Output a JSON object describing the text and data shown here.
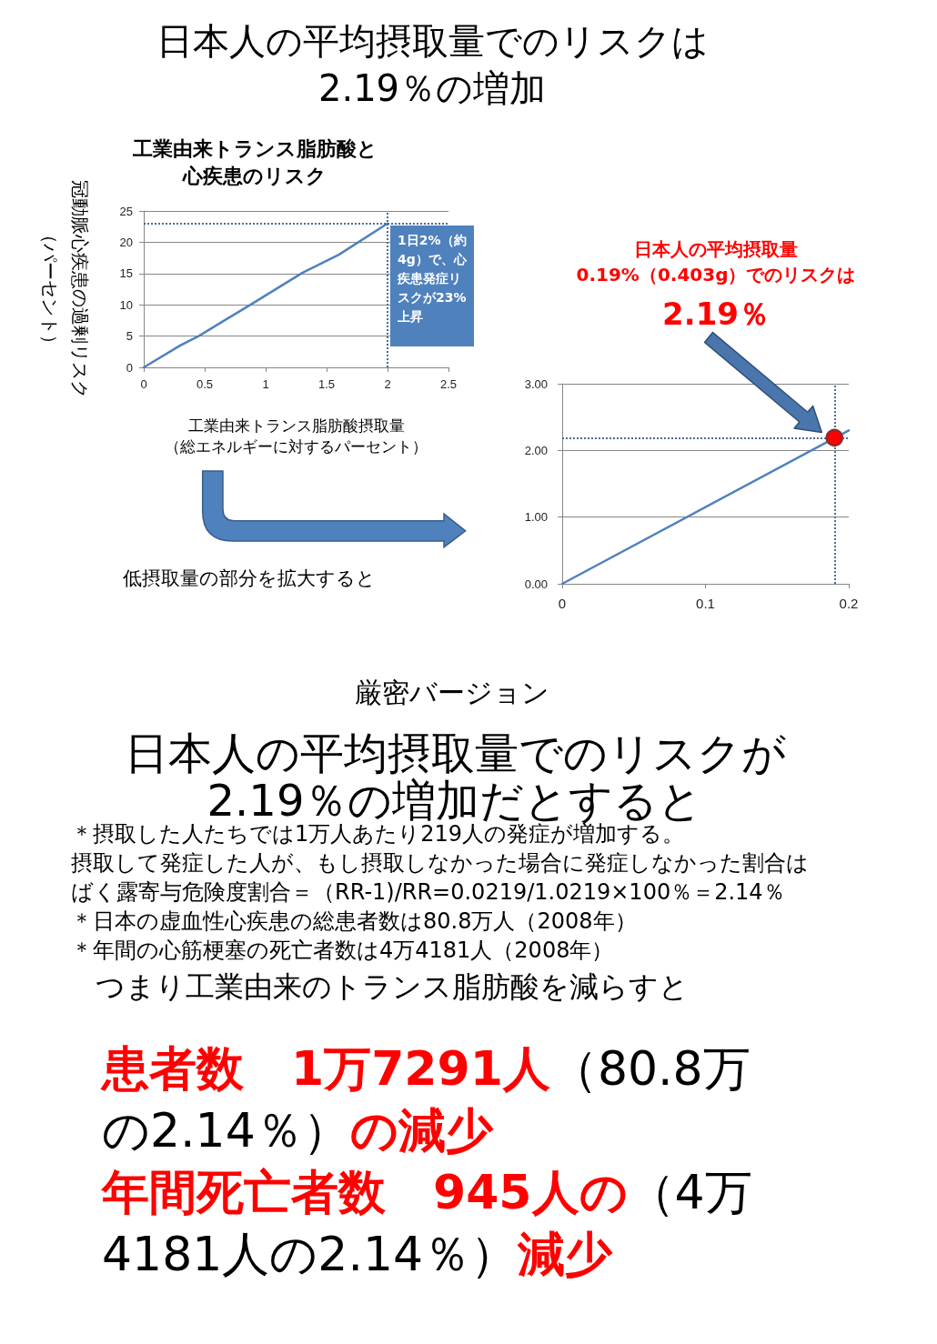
{
  "chart_data": [
    {
      "type": "other",
      "title": "日本人の平均摂取量でのリスクは\n2.19％の増加"
    },
    {
      "type": "line",
      "title": "工業由来トランス脂肪酸と心疾患のリスク",
      "xlabel": "工業由来トランス脂肪酸摂取量（総エネルギーに対するパーセント）",
      "ylabel": "冠動脈心疾患の過剰リスク（パーセント）",
      "x": [
        0,
        0.3,
        0.45,
        0.9,
        1.3,
        1.6,
        2
      ],
      "values": [
        0,
        3.5,
        5,
        10.3,
        15.1,
        18,
        23
      ],
      "color": "#4f81bd",
      "marker": "none",
      "xlim": [
        0,
        2.5
      ],
      "xticks": [
        0,
        0.5,
        1,
        1.5,
        2,
        2.5
      ],
      "ylim": [
        0,
        25
      ],
      "yticks": [
        0,
        5,
        10,
        15,
        20,
        25
      ],
      "grid": "y",
      "ref_lines": [
        {
          "axis": "y",
          "value": 23,
          "color": "#4a6d9a",
          "line_style": "dotted"
        },
        {
          "axis": "x",
          "value": 2,
          "color": "#4a6d9a",
          "line_style": "dotted"
        }
      ],
      "annotations": [
        {
          "text": "1日2%（約4g）で、心疾患発症リスクが23%上昇",
          "x": 2,
          "y": 23
        },
        "低摂取量の部分を拡大すると"
      ]
    },
    {
      "type": "line",
      "series": [
        {
          "type": "line",
          "x": [
            0,
            0.2
          ],
          "values": [
            0,
            2.3
          ],
          "color": "#4f81bd",
          "marker": "none"
        },
        {
          "type": "scatter",
          "x": [
            0.19
          ],
          "values": [
            2.19
          ],
          "color": "#ff0000",
          "marker": "circle"
        }
      ],
      "xlim": [
        0,
        0.2
      ],
      "xticks": [
        0,
        0.1,
        0.2
      ],
      "ylim": [
        0,
        3
      ],
      "yticks": [
        {
          "value": 0,
          "label": "0.00"
        },
        {
          "value": 1,
          "label": "1.00"
        },
        {
          "value": 2,
          "label": "2.00"
        },
        {
          "value": 3,
          "label": "3.00"
        }
      ],
      "grid": "y",
      "ref_lines": [
        {
          "axis": "y",
          "value": 2.19,
          "color": "#4a6d9a",
          "line_style": "dotted"
        },
        {
          "axis": "x",
          "value": 0.19,
          "color": "#4a6d9a",
          "line_style": "dotted"
        }
      ],
      "annotations": [
        "日本人の平均摂取量\n0.19%（0.403g）でのリスクは",
        "2.19％"
      ]
    },
    {
      "type": "other",
      "subtitle": "厳密バージョン",
      "title": "日本人の平均摂取量でのリスクが\n2.19％の増加だとすると",
      "annotations": [
        "＊摂取した人たちでは1万人あたり219人の発症が増加する。",
        "摂取して発症した人が、もし摂取しなかった場合に発症しなかった割合は",
        "ばく露寄与危険度割合＝（RR-1)/RR=0.0219/1.0219×100％＝2.14％",
        "＊日本の虚血性心疾患の総患者数は80.8万人（2008年）",
        "＊年間の心筋梗塞の死亡者数は4万4181人（2008年）",
        "つまり工業由来のトランス脂肪酸を減らすと",
        "患者数　1万7291人",
        "（80.8万",
        "の2.14％）",
        "の減少",
        "年間死亡者数　945人の",
        "（4万",
        "4181人の2.14％）",
        "減少"
      ]
    }
  ]
}
